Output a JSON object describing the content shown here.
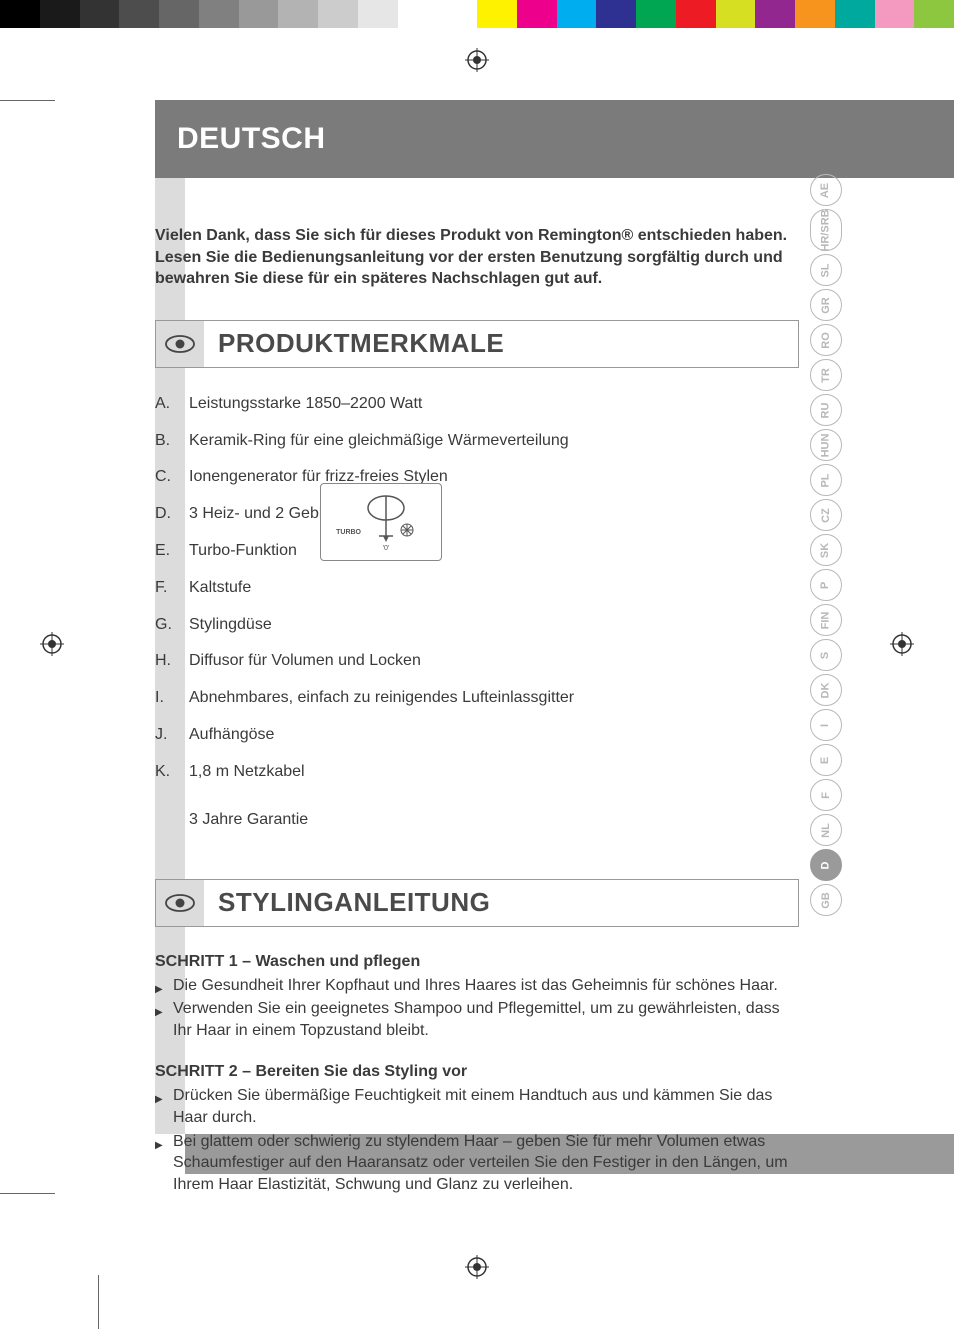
{
  "colorBar": [
    "#000000",
    "#1a1a1a",
    "#333333",
    "#4d4d4d",
    "#666666",
    "#808080",
    "#999999",
    "#b3b3b3",
    "#cccccc",
    "#e6e6e6",
    "#ffffff",
    "#ffffff",
    "#fff200",
    "#ec008c",
    "#00aeef",
    "#2e3192",
    "#00a651",
    "#ed1c24",
    "#d7df23",
    "#92278f",
    "#f7941d",
    "#00a99d",
    "#f49ac1",
    "#8dc63f"
  ],
  "header": {
    "title": "DEUTSCH"
  },
  "intro": "Vielen Dank, dass Sie sich für dieses Produkt von Remington® entschieden haben. Lesen Sie die Bedienungsanleitung vor der ersten Benutzung sorgfältig durch und bewahren Sie diese für ein späteres Nachschlagen gut auf.",
  "sections": {
    "features": {
      "heading": "PRODUKTMERKMALE",
      "items": [
        {
          "l": "A.",
          "t": "Leistungsstarke 1850–2200 Watt"
        },
        {
          "l": "B.",
          "t": "Keramik-Ring für eine gleichmäßige Wärmeverteilung"
        },
        {
          "l": "C.",
          "t": "Ionengenerator für frizz-freies Stylen"
        },
        {
          "l": "D.",
          "t": "3 Heiz- und 2 Gebläsestufen"
        },
        {
          "l": "E.",
          "t": "Turbo-Funktion"
        },
        {
          "l": "F.",
          "t": "Kaltstufe"
        },
        {
          "l": "G.",
          "t": "Stylingdüse"
        },
        {
          "l": "H.",
          "t": "Diffusor für Volumen und Locken"
        },
        {
          "l": "I.",
          "t": "Abnehmbares, einfach zu reinigendes Lufteinlassgitter"
        },
        {
          "l": "J.",
          "t": "Aufhängöse"
        },
        {
          "l": "K.",
          "t": "1,8 m Netzkabel"
        }
      ],
      "warranty": "3 Jahre Garantie"
    },
    "styling": {
      "heading": "STYLINGANLEITUNG",
      "steps": [
        {
          "title": "SCHRITT 1 – Waschen und pflegen",
          "bullets": [
            "Die Gesundheit Ihrer Kopfhaut und Ihres Haares ist das Geheimnis für schönes Haar.",
            "Verwenden Sie ein geeignetes Shampoo und Pflegemittel, um zu gewährleisten, dass Ihr Haar in einem Topzustand bleibt."
          ]
        },
        {
          "title": "SCHRITT 2 – Bereiten Sie das Styling vor",
          "bullets": [
            "Drücken Sie übermäßige Feuchtigkeit mit einem Handtuch aus und kämmen Sie das Haar durch.",
            "Bei glattem oder schwierig zu stylendem Haar – geben Sie für mehr Volumen etwas Schaumfestiger auf den Haaransatz oder verteilen Sie den Festiger in den Längen, um Ihrem Haar Elastizität, Schwung und Glanz zu verleihen."
          ]
        }
      ]
    }
  },
  "diagram": {
    "turboLabel": "TURBO",
    "zeroLabel": "'0'"
  },
  "langTabs": [
    "GB",
    "D",
    "NL",
    "F",
    "E",
    "I",
    "DK",
    "S",
    "FIN",
    "P",
    "SK",
    "CZ",
    "PL",
    "HUN",
    "RU",
    "TR",
    "RO",
    "GR",
    "SL",
    "HR/SRB",
    "AE"
  ],
  "activeLang": "D"
}
